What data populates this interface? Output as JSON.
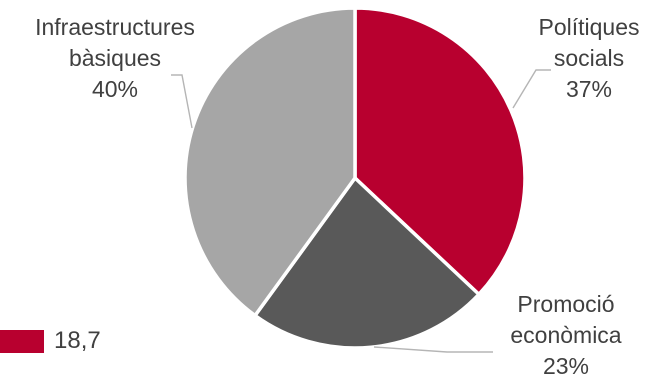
{
  "chart_data": {
    "type": "pie",
    "slices": [
      {
        "label_lines": [
          "Polítiques",
          "socials"
        ],
        "percent_label": "37%",
        "value": 37,
        "color": "#b8002f"
      },
      {
        "label_lines": [
          "Promoció",
          "econòmica"
        ],
        "percent_label": "23%",
        "value": 23,
        "color": "#595959"
      },
      {
        "label_lines": [
          "Infraestructures",
          "bàsiques"
        ],
        "percent_label": "40%",
        "value": 40,
        "color": "#a6a6a6"
      }
    ],
    "legend_entry": {
      "text": "18,7",
      "color": "#b8002f"
    }
  }
}
